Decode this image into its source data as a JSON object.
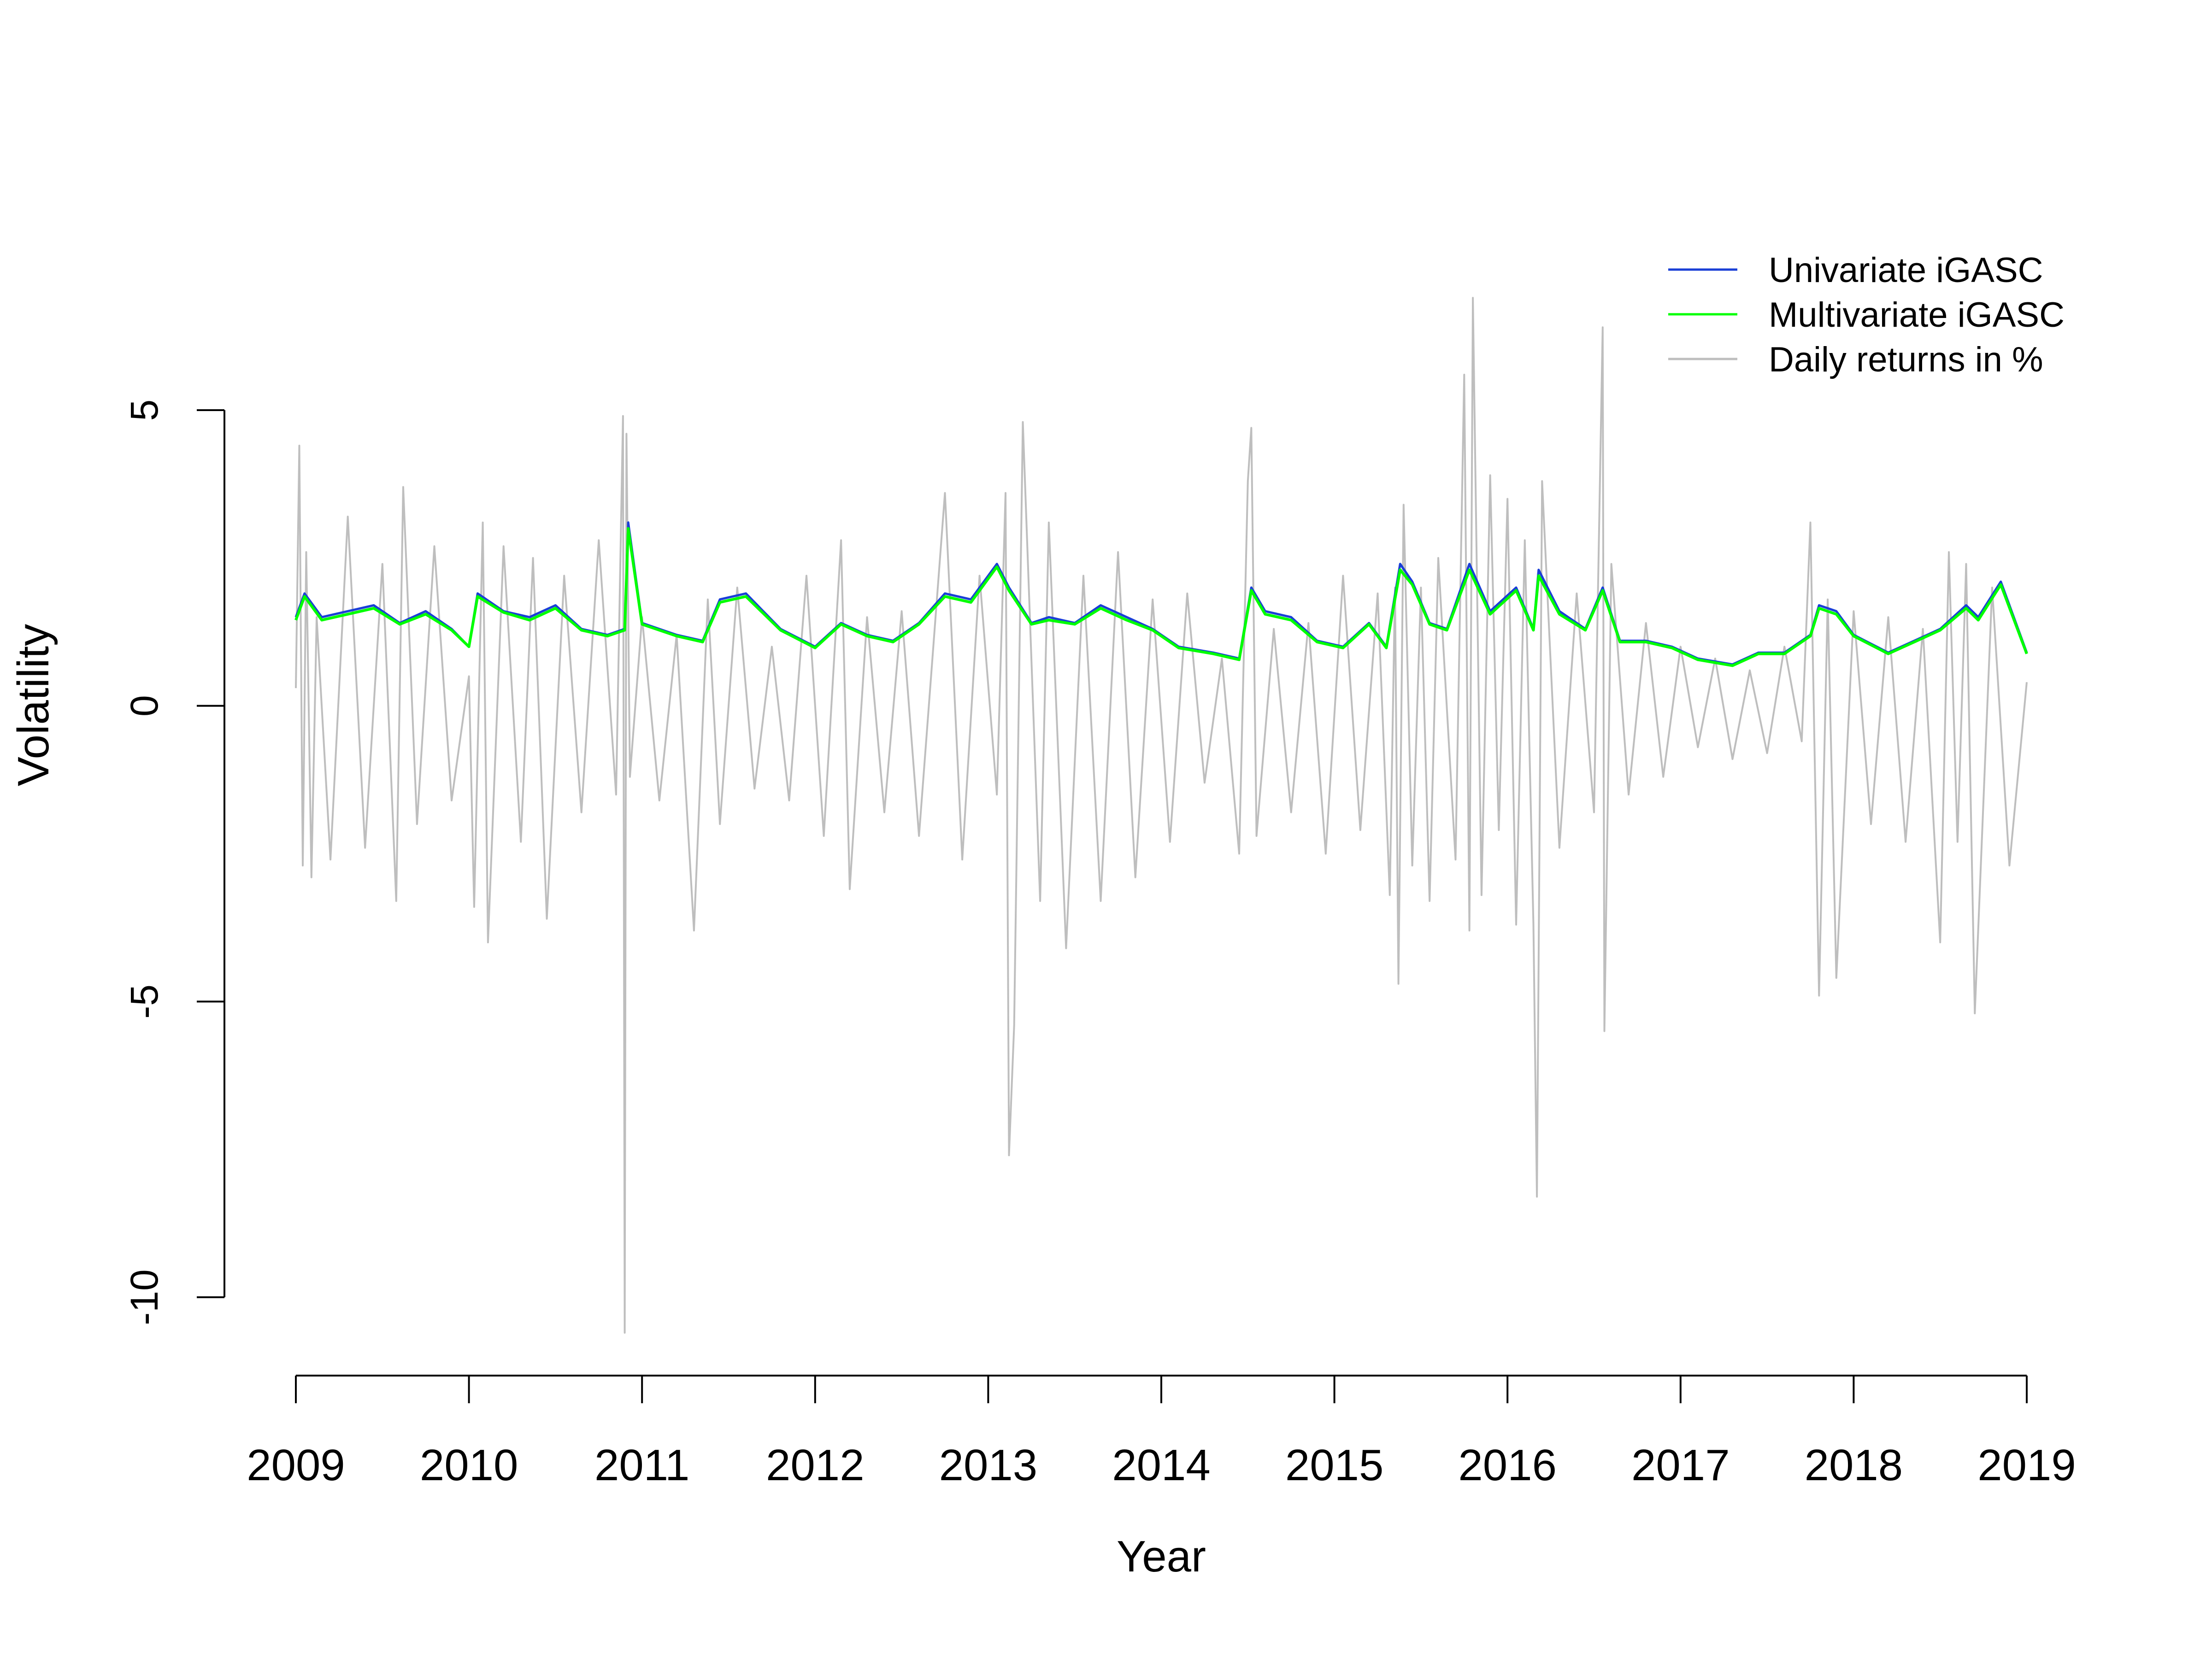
{
  "chart_data": {
    "type": "line",
    "title": "",
    "xlabel": "Year",
    "ylabel": "Volatility",
    "xlim": [
      2009.0,
      2019.0
    ],
    "ylim": [
      -10,
      5
    ],
    "x_ticks": [
      "2009",
      "2010",
      "2011",
      "2012",
      "2013",
      "2014",
      "2015",
      "2016",
      "2017",
      "2018",
      "2019"
    ],
    "y_ticks": [
      "-10",
      "-5",
      "0",
      "5"
    ],
    "grid": false,
    "legend_position": "top-right",
    "colors": {
      "univariate": "#1a3fd6",
      "multivariate": "#00ff00",
      "returns": "#bebebe"
    },
    "series": [
      {
        "name": "Univariate iGASC",
        "x": [
          2009.0,
          2009.05,
          2009.15,
          2009.3,
          2009.45,
          2009.6,
          2009.75,
          2009.9,
          2010.0,
          2010.05,
          2010.2,
          2010.35,
          2010.5,
          2010.65,
          2010.8,
          2010.9,
          2010.92,
          2011.0,
          2011.2,
          2011.35,
          2011.45,
          2011.6,
          2011.8,
          2012.0,
          2012.15,
          2012.3,
          2012.45,
          2012.6,
          2012.75,
          2012.9,
          2013.05,
          2013.12,
          2013.25,
          2013.35,
          2013.5,
          2013.65,
          2013.8,
          2013.95,
          2014.1,
          2014.3,
          2014.45,
          2014.52,
          2014.6,
          2014.75,
          2014.9,
          2015.05,
          2015.2,
          2015.3,
          2015.38,
          2015.45,
          2015.55,
          2015.65,
          2015.78,
          2015.9,
          2016.05,
          2016.15,
          2016.18,
          2016.3,
          2016.45,
          2016.55,
          2016.65,
          2016.8,
          2016.95,
          2017.1,
          2017.3,
          2017.45,
          2017.6,
          2017.75,
          2017.8,
          2017.9,
          2018.0,
          2018.2,
          2018.35,
          2018.5,
          2018.65,
          2018.72,
          2018.85,
          2019.0
        ],
        "values": [
          1.5,
          1.9,
          1.5,
          1.6,
          1.7,
          1.4,
          1.6,
          1.3,
          1.0,
          1.9,
          1.6,
          1.5,
          1.7,
          1.3,
          1.2,
          1.3,
          3.1,
          1.4,
          1.2,
          1.1,
          1.8,
          1.9,
          1.3,
          1.0,
          1.4,
          1.2,
          1.1,
          1.4,
          1.9,
          1.8,
          2.4,
          2.0,
          1.4,
          1.5,
          1.4,
          1.7,
          1.5,
          1.3,
          1.0,
          0.9,
          0.8,
          2.0,
          1.6,
          1.5,
          1.1,
          1.0,
          1.4,
          1.0,
          2.4,
          2.1,
          1.4,
          1.3,
          2.4,
          1.6,
          2.0,
          1.3,
          2.3,
          1.6,
          1.3,
          2.0,
          1.1,
          1.1,
          1.0,
          0.8,
          0.7,
          0.9,
          0.9,
          1.2,
          1.7,
          1.6,
          1.2,
          0.9,
          1.1,
          1.3,
          1.7,
          1.5,
          2.1,
          0.9
        ]
      },
      {
        "name": "Multivariate iGASC",
        "x": [
          2009.0,
          2009.05,
          2009.15,
          2009.3,
          2009.45,
          2009.6,
          2009.75,
          2009.9,
          2010.0,
          2010.05,
          2010.2,
          2010.35,
          2010.5,
          2010.65,
          2010.8,
          2010.9,
          2010.92,
          2011.0,
          2011.2,
          2011.35,
          2011.45,
          2011.6,
          2011.8,
          2012.0,
          2012.15,
          2012.3,
          2012.45,
          2012.6,
          2012.75,
          2012.9,
          2013.05,
          2013.12,
          2013.25,
          2013.35,
          2013.5,
          2013.65,
          2013.8,
          2013.95,
          2014.1,
          2014.3,
          2014.45,
          2014.52,
          2014.6,
          2014.75,
          2014.9,
          2015.05,
          2015.2,
          2015.3,
          2015.38,
          2015.45,
          2015.55,
          2015.65,
          2015.78,
          2015.9,
          2016.05,
          2016.15,
          2016.18,
          2016.3,
          2016.45,
          2016.55,
          2016.65,
          2016.8,
          2016.95,
          2017.1,
          2017.3,
          2017.45,
          2017.6,
          2017.75,
          2017.8,
          2017.9,
          2018.0,
          2018.2,
          2018.35,
          2018.5,
          2018.65,
          2018.72,
          2018.85,
          2019.0
        ],
        "values": [
          1.45,
          1.85,
          1.45,
          1.55,
          1.65,
          1.38,
          1.55,
          1.28,
          1.0,
          1.85,
          1.58,
          1.45,
          1.65,
          1.28,
          1.18,
          1.28,
          3.0,
          1.38,
          1.18,
          1.08,
          1.75,
          1.85,
          1.28,
          0.98,
          1.38,
          1.18,
          1.08,
          1.38,
          1.85,
          1.75,
          2.35,
          1.95,
          1.38,
          1.45,
          1.38,
          1.65,
          1.45,
          1.28,
          0.98,
          0.88,
          0.78,
          1.95,
          1.55,
          1.45,
          1.08,
          0.98,
          1.38,
          0.98,
          2.3,
          2.05,
          1.38,
          1.28,
          2.3,
          1.55,
          1.95,
          1.28,
          2.2,
          1.55,
          1.28,
          1.95,
          1.08,
          1.08,
          0.98,
          0.78,
          0.68,
          0.88,
          0.88,
          1.18,
          1.65,
          1.55,
          1.18,
          0.88,
          1.08,
          1.28,
          1.65,
          1.45,
          2.05,
          0.88
        ]
      },
      {
        "name": "Daily returns in %",
        "x": [
          2009.0,
          2009.02,
          2009.04,
          2009.06,
          2009.09,
          2009.12,
          2009.2,
          2009.3,
          2009.4,
          2009.5,
          2009.58,
          2009.62,
          2009.7,
          2009.8,
          2009.9,
          2010.0,
          2010.03,
          2010.08,
          2010.11,
          2010.2,
          2010.3,
          2010.37,
          2010.45,
          2010.55,
          2010.65,
          2010.75,
          2010.85,
          2010.89,
          2010.9,
          2010.91,
          2010.93,
          2011.0,
          2011.1,
          2011.2,
          2011.3,
          2011.38,
          2011.45,
          2011.55,
          2011.65,
          2011.75,
          2011.85,
          2011.95,
          2012.05,
          2012.15,
          2012.2,
          2012.3,
          2012.4,
          2012.5,
          2012.6,
          2012.75,
          2012.85,
          2012.95,
          2013.05,
          2013.1,
          2013.12,
          2013.15,
          2013.2,
          2013.3,
          2013.35,
          2013.45,
          2013.55,
          2013.65,
          2013.75,
          2013.85,
          2013.95,
          2014.05,
          2014.15,
          2014.25,
          2014.35,
          2014.45,
          2014.5,
          2014.52,
          2014.55,
          2014.65,
          2014.75,
          2014.85,
          2014.95,
          2015.05,
          2015.15,
          2015.25,
          2015.32,
          2015.35,
          2015.37,
          2015.4,
          2015.45,
          2015.5,
          2015.55,
          2015.6,
          2015.7,
          2015.75,
          2015.78,
          2015.8,
          2015.85,
          2015.9,
          2015.95,
          2016.0,
          2016.05,
          2016.1,
          2016.15,
          2016.17,
          2016.2,
          2016.3,
          2016.4,
          2016.5,
          2016.55,
          2016.56,
          2016.6,
          2016.7,
          2016.8,
          2016.9,
          2017.0,
          2017.1,
          2017.2,
          2017.3,
          2017.4,
          2017.5,
          2017.6,
          2017.7,
          2017.75,
          2017.8,
          2017.85,
          2017.9,
          2018.0,
          2018.1,
          2018.2,
          2018.3,
          2018.4,
          2018.5,
          2018.55,
          2018.6,
          2018.65,
          2018.7,
          2018.8,
          2018.9,
          2019.0
        ],
        "values": [
          0.3,
          4.4,
          -2.7,
          2.6,
          -2.9,
          1.5,
          -2.6,
          3.2,
          -2.4,
          2.4,
          -3.3,
          3.7,
          -2.0,
          2.7,
          -1.6,
          0.5,
          -3.4,
          3.1,
          -4.0,
          2.7,
          -2.3,
          2.5,
          -3.6,
          2.2,
          -1.8,
          2.8,
          -1.5,
          4.9,
          -10.6,
          4.6,
          -1.2,
          1.5,
          -1.6,
          1.2,
          -3.8,
          1.8,
          -2.0,
          2.0,
          -1.4,
          1.0,
          -1.6,
          2.2,
          -2.2,
          2.8,
          -3.1,
          1.5,
          -1.8,
          1.6,
          -2.2,
          3.6,
          -2.6,
          2.2,
          -1.5,
          3.6,
          -7.6,
          -5.4,
          4.8,
          -3.3,
          3.1,
          -4.1,
          2.2,
          -3.3,
          2.6,
          -2.9,
          1.8,
          -2.3,
          1.9,
          -1.3,
          0.8,
          -2.5,
          3.8,
          4.7,
          -2.2,
          1.3,
          -1.8,
          1.4,
          -2.5,
          2.2,
          -2.1,
          1.9,
          -3.2,
          2.0,
          -4.7,
          3.4,
          -2.7,
          2.0,
          -3.3,
          2.5,
          -2.6,
          5.6,
          -3.8,
          6.9,
          -3.2,
          3.9,
          -2.1,
          3.5,
          -3.7,
          2.8,
          -3.7,
          -8.3,
          3.8,
          -2.4,
          1.9,
          -1.8,
          6.4,
          -5.5,
          2.4,
          -1.5,
          1.4,
          -1.2,
          1.0,
          -0.7,
          0.8,
          -0.9,
          0.6,
          -0.8,
          1.0,
          -0.6,
          3.1,
          -4.9,
          1.8,
          -4.6,
          1.6,
          -2.0,
          1.5,
          -2.3,
          1.3,
          -4.0,
          2.6,
          -2.3,
          2.4,
          -5.2,
          2.0,
          -2.7,
          0.4
        ]
      }
    ]
  }
}
